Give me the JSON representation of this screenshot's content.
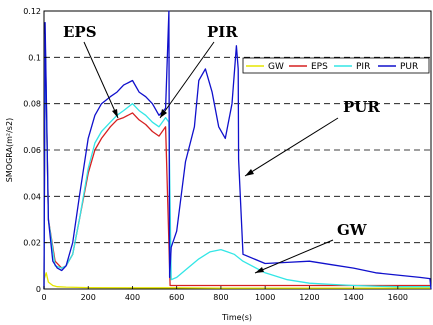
{
  "chart_data": {
    "type": "line",
    "title": "",
    "xlabel": "Time(s)",
    "ylabel": "SMOGRA(m²/s2)",
    "xlim": [
      0,
      1750
    ],
    "ylim": [
      0,
      0.12
    ],
    "xticks": [
      0,
      200,
      400,
      600,
      800,
      1000,
      1200,
      1400,
      1600
    ],
    "yticks": [
      0,
      0.02,
      0.04,
      0.06,
      0.08,
      0.1,
      0.12
    ],
    "xtick_labels": [
      "0",
      "200",
      "400",
      "600",
      "800",
      "1000",
      "1200",
      "1400",
      "1600"
    ],
    "ytick_labels": [
      "0",
      "0.02",
      "0.04",
      "0.06",
      "0.08",
      "0.1",
      "0.12"
    ],
    "grid": "horizontal dashed",
    "legend_position": "top-right",
    "series": [
      {
        "name": "GW",
        "color": "#e6e600",
        "x": [
          0,
          10,
          20,
          40,
          60,
          100,
          200,
          400,
          600,
          800,
          1000,
          1200,
          1400,
          1600,
          1750
        ],
        "y": [
          0.004,
          0.007,
          0.003,
          0.0015,
          0.001,
          0.0008,
          0.0006,
          0.0005,
          0.0005,
          0.0004,
          0.0004,
          0.0004,
          0.0004,
          0.0004,
          0.0004
        ]
      },
      {
        "name": "EPS",
        "color": "#d62020",
        "x": [
          0,
          5,
          20,
          50,
          80,
          100,
          130,
          160,
          200,
          230,
          260,
          300,
          330,
          360,
          400,
          430,
          460,
          490,
          520,
          550,
          570,
          600,
          800,
          1000,
          1200,
          1400,
          1600,
          1750
        ],
        "y": [
          0.0,
          0.11,
          0.03,
          0.012,
          0.009,
          0.01,
          0.015,
          0.03,
          0.05,
          0.06,
          0.065,
          0.07,
          0.073,
          0.074,
          0.076,
          0.073,
          0.071,
          0.068,
          0.066,
          0.07,
          0.0015,
          0.0015,
          0.0015,
          0.0015,
          0.0015,
          0.0015,
          0.0015,
          0.0015
        ]
      },
      {
        "name": "PIR",
        "color": "#33e6e6",
        "x": [
          0,
          5,
          20,
          50,
          80,
          100,
          130,
          160,
          200,
          230,
          260,
          300,
          330,
          360,
          400,
          430,
          460,
          490,
          520,
          550,
          565,
          575,
          600,
          650,
          700,
          750,
          800,
          830,
          860,
          900,
          1000,
          1100,
          1200,
          1300,
          1400,
          1500,
          1600,
          1750
        ],
        "y": [
          0.0,
          0.11,
          0.03,
          0.01,
          0.009,
          0.01,
          0.015,
          0.03,
          0.052,
          0.063,
          0.068,
          0.072,
          0.075,
          0.077,
          0.08,
          0.077,
          0.075,
          0.072,
          0.07,
          0.074,
          0.072,
          0.004,
          0.005,
          0.009,
          0.013,
          0.016,
          0.017,
          0.016,
          0.015,
          0.012,
          0.007,
          0.004,
          0.0025,
          0.002,
          0.0015,
          0.0012,
          0.001,
          0.001
        ]
      },
      {
        "name": "PUR",
        "color": "#1010cc",
        "x": [
          0,
          5,
          20,
          40,
          60,
          80,
          100,
          130,
          160,
          200,
          230,
          260,
          300,
          330,
          360,
          400,
          430,
          460,
          490,
          520,
          550,
          565,
          568,
          575,
          600,
          640,
          680,
          700,
          730,
          760,
          790,
          820,
          850,
          870,
          878,
          880,
          900,
          1000,
          1100,
          1200,
          1300,
          1400,
          1500,
          1600,
          1700,
          1745,
          1750
        ],
        "y": [
          0.0,
          0.115,
          0.03,
          0.012,
          0.009,
          0.008,
          0.01,
          0.02,
          0.04,
          0.065,
          0.075,
          0.08,
          0.083,
          0.085,
          0.088,
          0.09,
          0.085,
          0.083,
          0.08,
          0.075,
          0.078,
          0.12,
          0.005,
          0.018,
          0.025,
          0.055,
          0.07,
          0.09,
          0.095,
          0.085,
          0.07,
          0.065,
          0.08,
          0.105,
          0.095,
          0.056,
          0.015,
          0.011,
          0.0115,
          0.012,
          0.0105,
          0.009,
          0.007,
          0.006,
          0.005,
          0.0045,
          0.0
        ]
      }
    ],
    "annotations": [
      {
        "text": "EPS",
        "target": [
          330,
          0.074
        ]
      },
      {
        "text": "PIR",
        "target": [
          545,
          0.072
        ]
      },
      {
        "text": "PUR",
        "target": [
          880,
          0.058
        ]
      },
      {
        "text": "GW",
        "target": [
          1000,
          0.0015
        ]
      }
    ]
  }
}
